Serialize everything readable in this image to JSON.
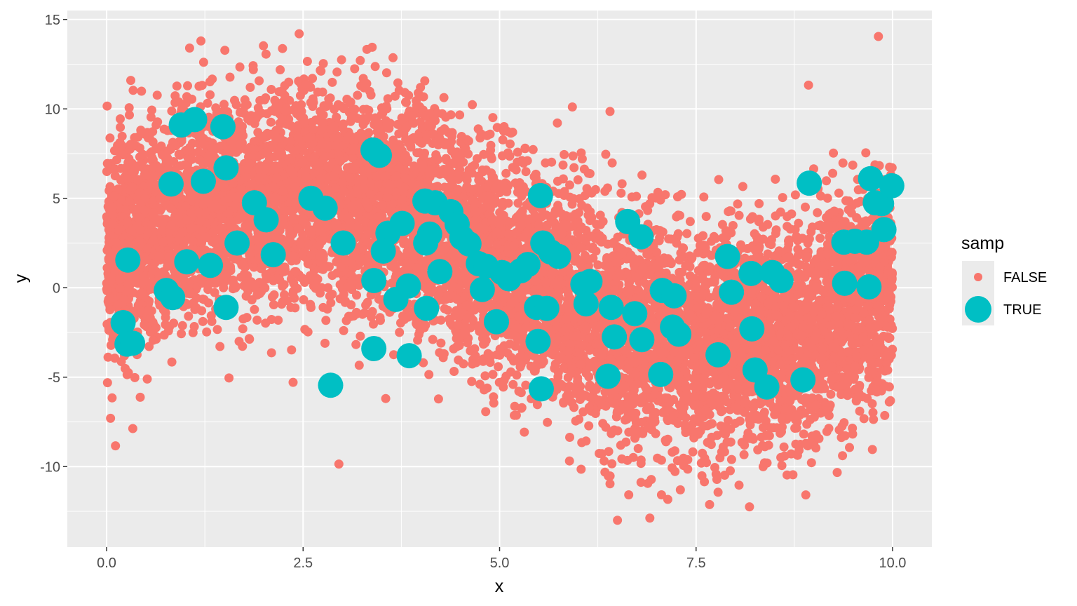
{
  "chart_data": {
    "type": "scatter",
    "xlabel": "x",
    "ylabel": "y",
    "xlim": [
      -0.5,
      10.5
    ],
    "ylim": [
      -14.5,
      15.5
    ],
    "x_ticks": [
      0.0,
      2.5,
      5.0,
      7.5,
      10.0
    ],
    "x_tick_labels": [
      "0.0",
      "2.5",
      "5.0",
      "7.5",
      "10.0"
    ],
    "y_ticks": [
      -10,
      -5,
      0,
      5,
      10,
      15
    ],
    "y_tick_labels": [
      "-10",
      "-5",
      "0",
      "5",
      "10",
      "15"
    ],
    "grid": true,
    "legend": {
      "title": "samp",
      "placement": "right",
      "entries": [
        {
          "label": "FALSE",
          "color": "#F8766D"
        },
        {
          "label": "TRUE",
          "color": "#00BFC4"
        }
      ]
    },
    "series": [
      {
        "name": "FALSE",
        "color": "#F8766D",
        "trend": "y ≈ 1.7 + 4·sin(0.6·x) style wave: peak ~4 near x=2.5, trough ~-4 near x=7, rising to ~3 near x=10; noise sd ≈ 3.2; ~10000 points over x in [0, 10]",
        "approx_points": 10000,
        "outliers": [
          [
            2.45,
            14.2
          ],
          [
            9.82,
            14.05
          ],
          [
            1.2,
            13.8
          ],
          [
            6.5,
            -13
          ],
          [
            7.3,
            -11.3
          ],
          [
            0.05,
            -7.3
          ]
        ]
      },
      {
        "name": "TRUE",
        "points": [
          [
            0.95,
            9.1
          ],
          [
            1.12,
            9.4
          ],
          [
            1.48,
            9.0
          ],
          [
            0.82,
            5.8
          ],
          [
            1.23,
            5.95
          ],
          [
            1.52,
            6.7
          ],
          [
            1.88,
            4.75
          ],
          [
            2.03,
            3.8
          ],
          [
            1.66,
            2.5
          ],
          [
            2.12,
            1.85
          ],
          [
            1.32,
            1.25
          ],
          [
            1.02,
            1.45
          ],
          [
            0.27,
            1.55
          ],
          [
            0.76,
            -0.15
          ],
          [
            0.84,
            -0.55
          ],
          [
            1.52,
            -1.1
          ],
          [
            0.21,
            -1.95
          ],
          [
            0.26,
            -3.15
          ],
          [
            0.33,
            -3.1
          ],
          [
            2.6,
            5.0
          ],
          [
            2.78,
            4.45
          ],
          [
            3.01,
            2.5
          ],
          [
            2.85,
            -5.45
          ],
          [
            3.39,
            7.7
          ],
          [
            3.47,
            7.4
          ],
          [
            3.58,
            3.05
          ],
          [
            3.52,
            2.05
          ],
          [
            3.76,
            3.6
          ],
          [
            3.4,
            0.4
          ],
          [
            3.84,
            0.1
          ],
          [
            3.68,
            -0.65
          ],
          [
            3.4,
            -3.4
          ],
          [
            3.85,
            -3.8
          ],
          [
            4.05,
            4.85
          ],
          [
            4.18,
            4.75
          ],
          [
            4.38,
            4.25
          ],
          [
            4.46,
            3.55
          ],
          [
            4.11,
            3.0
          ],
          [
            4.06,
            2.5
          ],
          [
            4.52,
            2.8
          ],
          [
            4.61,
            2.45
          ],
          [
            4.24,
            0.9
          ],
          [
            4.07,
            -1.15
          ],
          [
            4.73,
            1.35
          ],
          [
            4.83,
            1.2
          ],
          [
            4.78,
            -0.1
          ],
          [
            4.96,
            -1.9
          ],
          [
            5.03,
            0.85
          ],
          [
            5.12,
            0.5
          ],
          [
            5.27,
            0.95
          ],
          [
            5.36,
            1.3
          ],
          [
            5.52,
            5.15
          ],
          [
            5.55,
            2.5
          ],
          [
            5.65,
            2.0
          ],
          [
            5.75,
            1.75
          ],
          [
            5.47,
            -1.1
          ],
          [
            5.6,
            -1.15
          ],
          [
            5.49,
            -3.0
          ],
          [
            5.53,
            -5.65
          ],
          [
            6.06,
            0.2
          ],
          [
            6.15,
            0.35
          ],
          [
            6.1,
            -0.9
          ],
          [
            6.42,
            -1.1
          ],
          [
            6.38,
            -4.95
          ],
          [
            6.46,
            -2.75
          ],
          [
            6.63,
            3.7
          ],
          [
            6.8,
            2.85
          ],
          [
            6.72,
            -1.45
          ],
          [
            6.81,
            -2.9
          ],
          [
            7.07,
            -0.15
          ],
          [
            7.22,
            -0.45
          ],
          [
            7.2,
            -2.2
          ],
          [
            7.28,
            -2.6
          ],
          [
            7.05,
            -4.85
          ],
          [
            7.78,
            -3.75
          ],
          [
            7.9,
            1.75
          ],
          [
            7.95,
            -0.25
          ],
          [
            8.2,
            0.8
          ],
          [
            8.21,
            -2.3
          ],
          [
            8.25,
            -4.6
          ],
          [
            8.4,
            -5.55
          ],
          [
            8.47,
            0.85
          ],
          [
            8.58,
            0.4
          ],
          [
            8.86,
            -5.15
          ],
          [
            8.94,
            5.85
          ],
          [
            9.38,
            2.55
          ],
          [
            9.52,
            2.6
          ],
          [
            9.67,
            2.55
          ],
          [
            9.39,
            0.25
          ],
          [
            9.72,
            6.1
          ],
          [
            9.78,
            4.75
          ],
          [
            9.86,
            4.7
          ],
          [
            9.99,
            5.7
          ],
          [
            9.89,
            3.25
          ],
          [
            9.7,
            0.05
          ]
        ]
      }
    ]
  }
}
